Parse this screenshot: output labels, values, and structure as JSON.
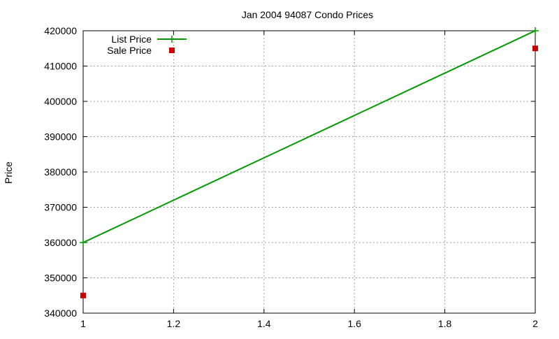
{
  "chart_data": {
    "type": "line",
    "title": "Jan 2004 94087 Condo Prices",
    "xlabel": "",
    "ylabel": "Price",
    "xlim": [
      1,
      2
    ],
    "ylim": [
      340000,
      420000
    ],
    "x_ticks": [
      1,
      1.2,
      1.4,
      1.6,
      1.8,
      2
    ],
    "x_tick_labels": [
      "1",
      "1.2",
      "1.4",
      "1.6",
      "1.8",
      "2"
    ],
    "y_ticks": [
      340000,
      350000,
      360000,
      370000,
      380000,
      390000,
      400000,
      410000,
      420000
    ],
    "y_tick_labels": [
      "340000",
      "350000",
      "360000",
      "370000",
      "380000",
      "390000",
      "400000",
      "410000",
      "420000"
    ],
    "grid": true,
    "legend_position": "top-left",
    "series": [
      {
        "name": "List Price",
        "style": "linespoints",
        "color": "#009900",
        "x": [
          1,
          2
        ],
        "y": [
          360000,
          420000
        ]
      },
      {
        "name": "Sale Price",
        "style": "points",
        "color": "#cc0000",
        "x": [
          1,
          2
        ],
        "y": [
          345000,
          415000
        ]
      }
    ]
  }
}
